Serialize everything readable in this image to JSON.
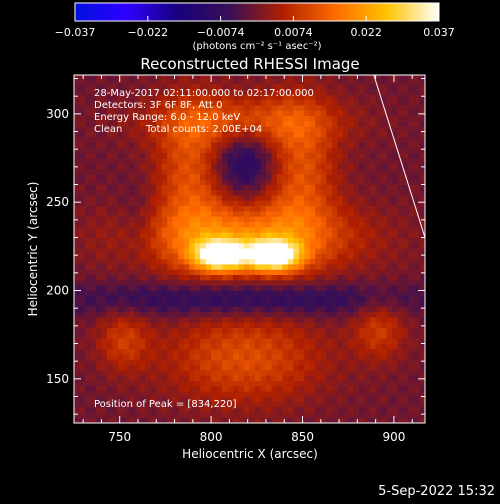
{
  "chart_data": {
    "type": "heatmap",
    "title": "Reconstructed RHESSI Image",
    "xlabel": "Heliocentric X (arcsec)",
    "ylabel": "Heliocentric Y (arcsec)",
    "xlim": [
      725,
      917
    ],
    "ylim": [
      125,
      322
    ],
    "x_ticks": [
      750,
      800,
      850,
      900
    ],
    "y_ticks": [
      150,
      200,
      250,
      300
    ],
    "colorbar": {
      "ticks": [
        "−0.037",
        "−0.022",
        "−0.0074",
        "0.0074",
        "0.022",
        "0.037"
      ],
      "unit_label": "(photons cm⁻² s⁻¹ asec⁻²)",
      "range": [
        -0.037,
        0.037
      ]
    },
    "annotations": [
      "28-May-2017 02:11:00.000 to 02:17:00.000",
      "Detectors: 3F 6F 8F, Att 0",
      "Energy Range: 6.0 - 12.0 keV",
      "Clean",
      "Total counts: 2.00E+04"
    ],
    "peak_label": "Position of Peak = [834,220]",
    "peak": [
      834,
      220
    ],
    "limb_line": {
      "from": [
        889,
        322
      ],
      "to": [
        917,
        230
      ]
    },
    "sources": [
      {
        "x": 805,
        "y": 220,
        "sx": 10,
        "sy": 6,
        "amp": 0.036
      },
      {
        "x": 834,
        "y": 220,
        "sx": 10,
        "sy": 6,
        "amp": 0.037
      },
      {
        "x": 818,
        "y": 230,
        "sx": 42,
        "sy": 14,
        "amp": 0.018
      },
      {
        "x": 790,
        "y": 268,
        "sx": 14,
        "sy": 28,
        "amp": 0.013
      },
      {
        "x": 848,
        "y": 268,
        "sx": 14,
        "sy": 28,
        "amp": 0.013
      },
      {
        "x": 818,
        "y": 296,
        "sx": 36,
        "sy": 10,
        "amp": 0.011
      },
      {
        "x": 818,
        "y": 272,
        "sx": 14,
        "sy": 14,
        "amp": -0.012
      },
      {
        "x": 818,
        "y": 195,
        "sx": 70,
        "sy": 7,
        "amp": -0.009
      },
      {
        "x": 818,
        "y": 162,
        "sx": 30,
        "sy": 18,
        "amp": 0.012
      },
      {
        "x": 752,
        "y": 172,
        "sx": 10,
        "sy": 12,
        "amp": 0.009
      },
      {
        "x": 892,
        "y": 178,
        "sx": 10,
        "sy": 12,
        "amp": 0.009
      },
      {
        "x": 760,
        "y": 238,
        "sx": 8,
        "sy": 16,
        "amp": -0.004
      }
    ],
    "colors": {
      "background": "#000000",
      "text": "#ffffff",
      "colormap": [
        "#0010e0",
        "#2f00ff",
        "#18007a",
        "#3a0f55",
        "#b02000",
        "#ff6a00",
        "#ffc400",
        "#ffffff"
      ]
    }
  },
  "footer": {
    "timestamp": "5-Sep-2022 15:32"
  }
}
